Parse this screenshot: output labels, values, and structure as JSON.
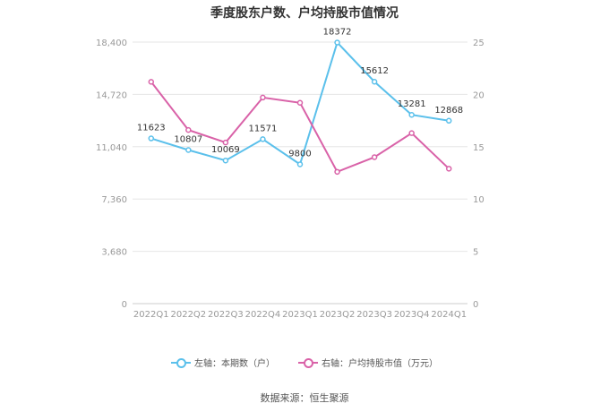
{
  "title": "季度股东户数、户均持股市值情况",
  "source": "数据来源：恒生聚源",
  "legend": {
    "left": "左轴：本期数（户）",
    "right": "右轴：户均持股市值（万元）"
  },
  "colors": {
    "left_series": "#5bc0eb",
    "right_series": "#d962a8",
    "grid": "#e6e6e6",
    "axis_text": "#999999"
  },
  "chart_data": {
    "type": "line",
    "title": "季度股东户数、户均持股市值情况",
    "categories": [
      "2022Q1",
      "2022Q2",
      "2022Q3",
      "2022Q4",
      "2023Q1",
      "2023Q2",
      "2023Q3",
      "2023Q4",
      "2024Q1"
    ],
    "left_axis": {
      "ticks": [
        0,
        3680,
        7360,
        11040,
        14720,
        18400
      ],
      "tick_labels": [
        "0",
        "3,680",
        "7,360",
        "11,040",
        "14,720",
        "18,400"
      ],
      "ylim": [
        0,
        18400
      ]
    },
    "right_axis": {
      "ticks": [
        0,
        5,
        10,
        15,
        20,
        25
      ],
      "tick_labels": [
        "0",
        "5",
        "10",
        "15",
        "20",
        "25"
      ],
      "ylim": [
        0,
        25
      ]
    },
    "series": [
      {
        "name": "左轴：本期数（户）",
        "axis": "left",
        "values": [
          11623,
          10807,
          10069,
          11571,
          9800,
          18372,
          15612,
          13281,
          12868
        ],
        "labels": [
          "11623",
          "10807",
          "10069",
          "11571",
          "9800",
          "18372",
          "15612",
          "13281",
          "12868"
        ]
      },
      {
        "name": "右轴：户均持股市值（万元）",
        "axis": "right",
        "values": [
          21.2,
          16.6,
          15.4,
          19.7,
          19.2,
          12.6,
          14.0,
          16.3,
          12.9
        ]
      }
    ],
    "grid": true,
    "legend_position": "bottom-center"
  }
}
